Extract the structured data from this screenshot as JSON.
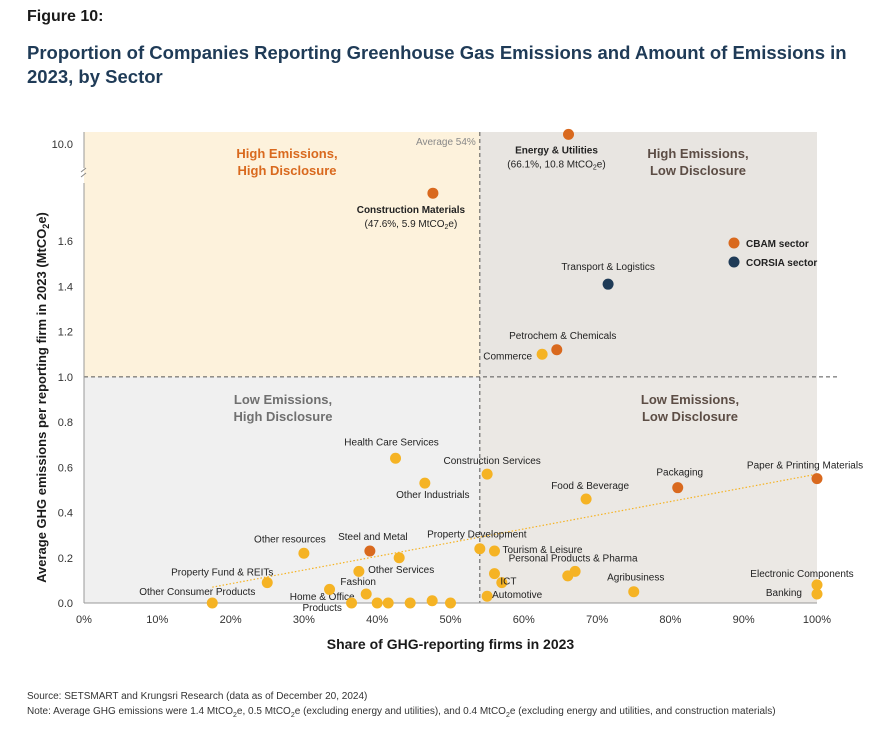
{
  "figure_label": "Figure 10:",
  "title": "Proportion of Companies Reporting Greenhouse Gas Emissions and Amount of Emissions in 2023, by Sector",
  "source": "Source: SETSMART and Krungsri Research (data as of December 20, 2024)",
  "note": {
    "prefix": "Note: Average GHG emissions were 1.4 MtCO",
    "p2": "e, 0.5 MtCO",
    "p3": "e (excluding energy and utilities), and 0.4 MtCO",
    "p4": "e (excluding energy and utilities, and construction materials)",
    "sub": "2"
  },
  "colors": {
    "cbam": "#d9691e",
    "corsia": "#1f3b57",
    "other": "#f5b324",
    "hh_bg": "#fdf2dc",
    "hl_bg": "#e8e5e1",
    "lh_bg": "#f0f0f0",
    "ll_bg": "#ebe8e4",
    "quad_title_orange": "#d9691e",
    "quad_title_gray": "#707070",
    "quad_title_dark": "#5c4d45",
    "title": "#1f3b57"
  },
  "chart_data": {
    "type": "scatter",
    "xlabel": "Share of GHG-reporting firms in 2023",
    "ylabel": "Average GHG emissions per reporting firm in 2023 (MtCO",
    "ylabel_sub": "2",
    "ylabel_suffix": "e)",
    "x_ticks": [
      "0%",
      "10%",
      "20%",
      "30%",
      "40%",
      "50%",
      "60%",
      "70%",
      "80%",
      "90%",
      "100%"
    ],
    "y_ticks": [
      "0.0",
      "0.2",
      "0.4",
      "0.6",
      "0.8",
      "1.0",
      "1.2",
      "1.4",
      "1.6"
    ],
    "y_break_tick": "10.0",
    "xlim": [
      0,
      100
    ],
    "ylim": [
      0,
      1.8
    ],
    "y_axis_break": true,
    "average_line_x": 54,
    "average_label": "Average 54%",
    "threshold_y": 1.0,
    "quadrants": {
      "high_high": [
        "High Emissions,",
        "High Disclosure"
      ],
      "high_low": [
        "High Emissions,",
        "Low Disclosure"
      ],
      "low_high": [
        "Low Emissions,",
        "High Disclosure"
      ],
      "low_low": [
        "Low Emissions,",
        "Low Disclosure"
      ]
    },
    "legend": {
      "position": "top-right",
      "cbam": "CBAM sector",
      "corsia": "CORSIA sector"
    },
    "trendline": {
      "from": [
        17.5,
        0.07
      ],
      "to": [
        100,
        0.57
      ]
    },
    "points": [
      {
        "label": "Energy & Utilities",
        "sub_a": "(66.1%, 10.8 MtCO",
        "sub_b": "e)",
        "x": 66.1,
        "y": 10.8,
        "group": "cbam",
        "bold": true
      },
      {
        "label": "Construction Materials",
        "sub_a": "(47.6%, 5.9 MtCO",
        "sub_b": "e)",
        "x": 47.6,
        "y": 5.9,
        "group": "cbam",
        "bold": true
      },
      {
        "label": "Transport & Logistics",
        "x": 71.5,
        "y": 1.41,
        "group": "corsia"
      },
      {
        "label": "Petrochem & Chemicals",
        "x": 64.5,
        "y": 1.12,
        "group": "cbam"
      },
      {
        "label": "Commerce",
        "x": 62.5,
        "y": 1.1,
        "group": "other"
      },
      {
        "label": "Health Care Services",
        "x": 42.5,
        "y": 0.64,
        "group": "other"
      },
      {
        "label": "Other Industrials",
        "x": 46.5,
        "y": 0.53,
        "group": "other"
      },
      {
        "label": "Construction Services",
        "x": 55,
        "y": 0.57,
        "group": "other"
      },
      {
        "label": "Food & Beverage",
        "x": 68.5,
        "y": 0.46,
        "group": "other"
      },
      {
        "label": "Packaging",
        "x": 81,
        "y": 0.51,
        "group": "cbam"
      },
      {
        "label": "Paper & Printing Materials",
        "x": 100,
        "y": 0.55,
        "group": "cbam"
      },
      {
        "label": "Other resources",
        "x": 30,
        "y": 0.22,
        "group": "other"
      },
      {
        "label": "Steel and Metal",
        "x": 39,
        "y": 0.23,
        "group": "cbam"
      },
      {
        "label": "Other Services",
        "x": 43,
        "y": 0.2,
        "group": "other"
      },
      {
        "label": "Property Development",
        "x": 54,
        "y": 0.24,
        "group": "other"
      },
      {
        "label": "Tourism & Leisure",
        "x": 56,
        "y": 0.23,
        "group": "other"
      },
      {
        "label": "Personal Products & Pharma",
        "x": 67,
        "y": 0.14,
        "group": "other"
      },
      {
        "label": "",
        "x": 66,
        "y": 0.12,
        "group": "other"
      },
      {
        "label": "",
        "x": 56,
        "y": 0.13,
        "group": "other"
      },
      {
        "label": "",
        "x": 57,
        "y": 0.09,
        "group": "other"
      },
      {
        "label": "ICT",
        "x": 57.5,
        "y": 0.09,
        "group": "none"
      },
      {
        "label": "Agribusiness",
        "x": 75,
        "y": 0.05,
        "group": "other"
      },
      {
        "label": "Electronic Components",
        "x": 100,
        "y": 0.08,
        "group": "other"
      },
      {
        "label": "Banking",
        "x": 100,
        "y": 0.04,
        "group": "other"
      },
      {
        "label": "Property Fund & REITs",
        "x": 25,
        "y": 0.09,
        "group": "other"
      },
      {
        "label": "Other Consumer Products",
        "x": 17.5,
        "y": 0.0,
        "group": "other"
      },
      {
        "label": "Fashion",
        "x": 38.5,
        "y": 0.04,
        "group": "other"
      },
      {
        "label": "Home & Office",
        "label2": "Products",
        "x": 40,
        "y": 0.0,
        "group": "other"
      },
      {
        "label": "",
        "x": 33.5,
        "y": 0.06,
        "group": "other"
      },
      {
        "label": "",
        "x": 36.5,
        "y": 0.0,
        "group": "other"
      },
      {
        "label": "",
        "x": 37.5,
        "y": 0.14,
        "group": "other"
      },
      {
        "label": "",
        "x": 41.5,
        "y": 0.0,
        "group": "other"
      },
      {
        "label": "",
        "x": 44.5,
        "y": 0.0,
        "group": "other"
      },
      {
        "label": "",
        "x": 47.5,
        "y": 0.01,
        "group": "other"
      },
      {
        "label": "",
        "x": 50,
        "y": 0.0,
        "group": "other"
      },
      {
        "label": "Automotive",
        "x": 55,
        "y": 0.03,
        "group": "other"
      }
    ]
  }
}
